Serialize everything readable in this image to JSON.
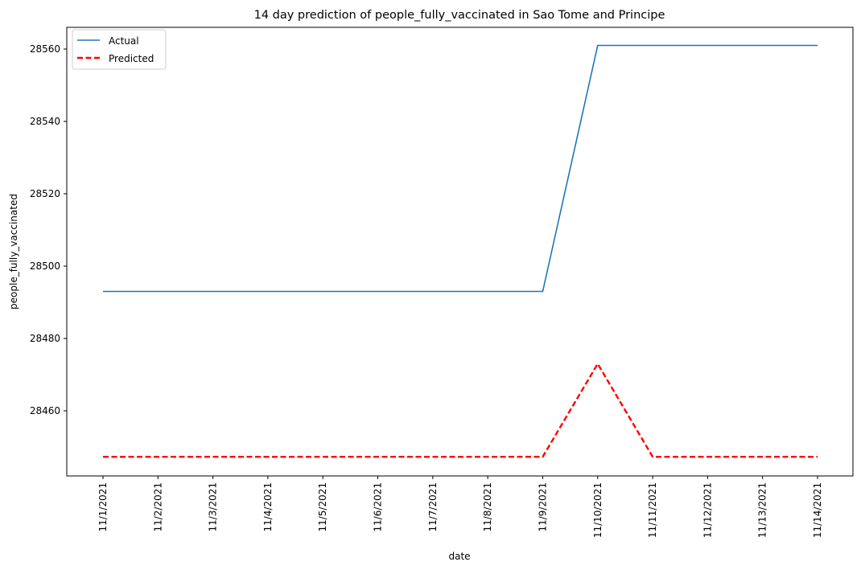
{
  "chart_data": {
    "type": "line",
    "title": "14 day prediction of people_fully_vaccinated in Sao Tome and Principe",
    "xlabel": "date",
    "ylabel": "people_fully_vaccinated",
    "categories": [
      "11/1/2021",
      "11/2/2021",
      "11/3/2021",
      "11/4/2021",
      "11/5/2021",
      "11/6/2021",
      "11/7/2021",
      "11/8/2021",
      "11/9/2021",
      "11/10/2021",
      "11/11/2021",
      "11/12/2021",
      "11/13/2021",
      "11/14/2021"
    ],
    "yticks": [
      28460,
      28480,
      28500,
      28520,
      28540,
      28560
    ],
    "ylim": [
      28442,
      28566
    ],
    "grid": false,
    "legend_position": "top-left",
    "series": [
      {
        "name": "Actual",
        "color": "#1f77b4",
        "style": "solid",
        "values": [
          28493,
          28493,
          28493,
          28493,
          28493,
          28493,
          28493,
          28493,
          28493,
          28561,
          28561,
          28561,
          28561,
          28561
        ]
      },
      {
        "name": "Predicted",
        "color": "#ff0000",
        "style": "dashed",
        "values": [
          28447.3,
          28447.3,
          28447.3,
          28447.3,
          28447.3,
          28447.3,
          28447.3,
          28447.3,
          28447.3,
          28473,
          28447.3,
          28447.3,
          28447.3,
          28447.3
        ]
      }
    ]
  }
}
